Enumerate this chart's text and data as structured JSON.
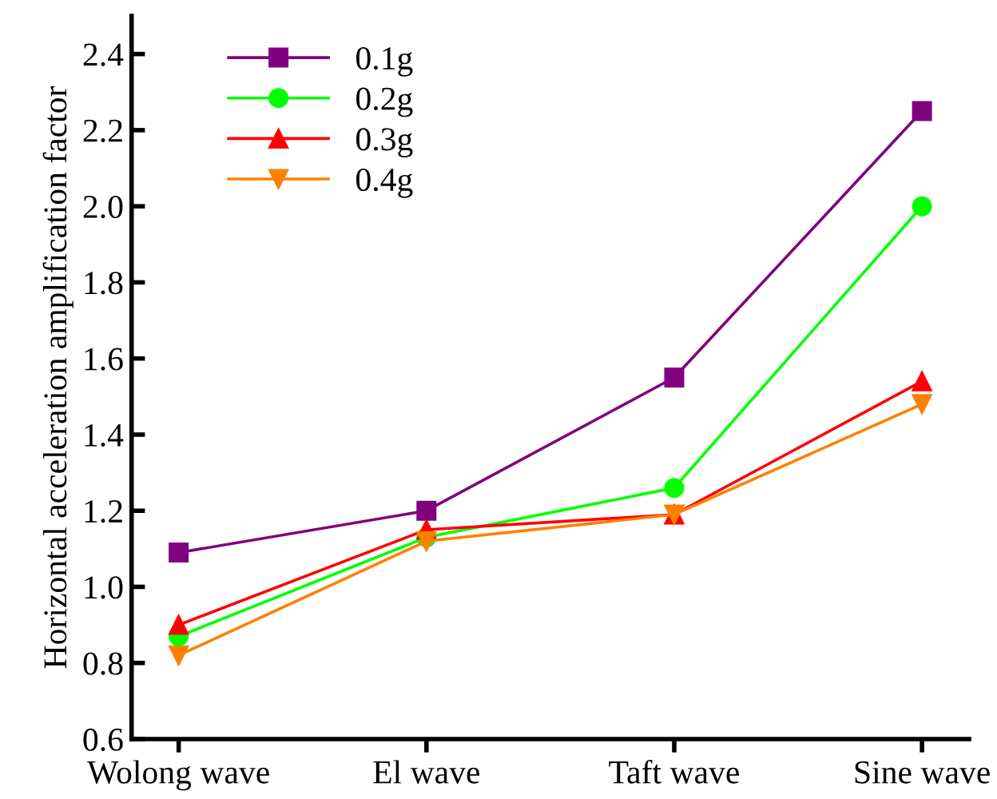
{
  "chart_data": {
    "type": "line",
    "ylabel": "Horizontal acceleration amplification factor",
    "categories": [
      "Wolong wave",
      "El wave",
      "Taft wave",
      "Sine wave"
    ],
    "series": [
      {
        "name": "0.1g",
        "color": "#800080",
        "marker": "square",
        "values": [
          1.09,
          1.2,
          1.55,
          2.25
        ]
      },
      {
        "name": "0.2g",
        "color": "#00ff00",
        "marker": "circle",
        "values": [
          0.87,
          1.13,
          1.26,
          2.0
        ]
      },
      {
        "name": "0.3g",
        "color": "#ff0000",
        "marker": "triangle",
        "values": [
          0.9,
          1.15,
          1.19,
          1.54
        ]
      },
      {
        "name": "0.4g",
        "color": "#ff8000",
        "marker": "triangle_down",
        "values": [
          0.82,
          1.12,
          1.19,
          1.48
        ]
      }
    ],
    "ylim": [
      0.6,
      2.5
    ],
    "yticks": [
      0.6,
      0.8,
      {
        "value": 1,
        "label": "1.0"
      },
      1.2,
      1.4,
      1.6,
      1.8,
      {
        "value": 2,
        "label": "2.0"
      },
      2.2,
      2.4
    ],
    "grid": false,
    "legend": "top left",
    "line_style": "solid"
  }
}
